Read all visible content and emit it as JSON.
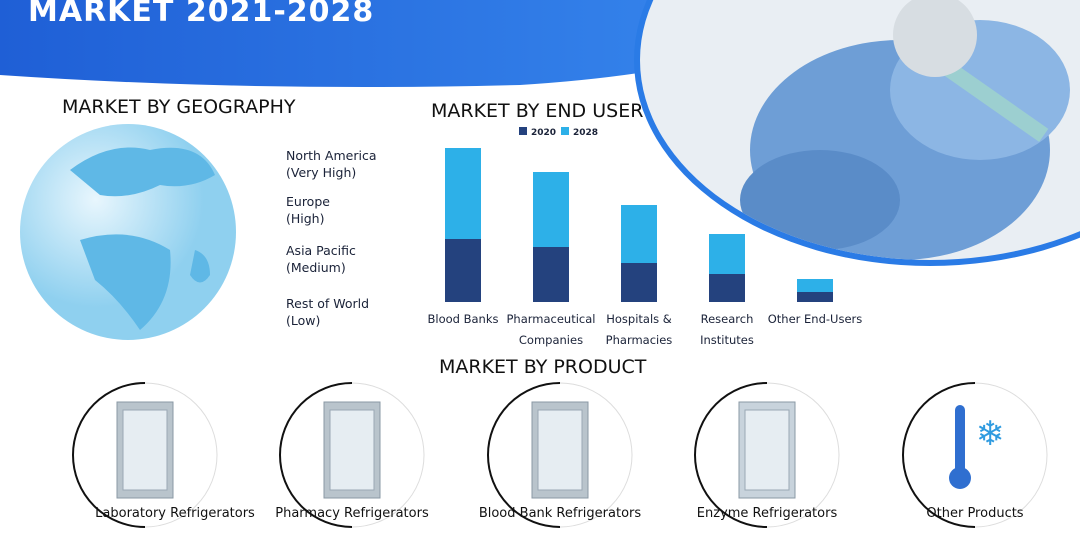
{
  "header": {
    "title": "MARKET 2021-2028"
  },
  "geography": {
    "title": "MARKET BY GEOGRAPHY",
    "regions": [
      [
        "North America",
        "(Very High)"
      ],
      [
        "Europe",
        "(High)"
      ],
      [
        "Asia Pacific",
        "(Medium)"
      ],
      [
        "Rest of World",
        "(Low)"
      ]
    ]
  },
  "chart_data": {
    "type": "stacked-bar",
    "title": "MARKET BY END USER",
    "categories": [
      "Blood Banks",
      "Pharmaceutical Companies",
      "Hospitals & Pharmacies",
      "Research Institutes",
      "Other End-Users"
    ],
    "series": [
      {
        "name": "2020",
        "color": "#24427e",
        "values": [
          63,
          55,
          39,
          28,
          10
        ]
      },
      {
        "name": "2028",
        "color": "#2db0e8",
        "values": [
          91,
          75,
          58,
          40,
          13
        ]
      }
    ],
    "ylim": [
      0,
      160
    ]
  },
  "products": {
    "title": "MARKET BY PRODUCT",
    "items": [
      "Laboratory Refrigerators",
      "Pharmacy Refrigerators",
      "Blood Bank Refrigerators",
      "Enzyme Refrigerators",
      "Other Products"
    ]
  }
}
